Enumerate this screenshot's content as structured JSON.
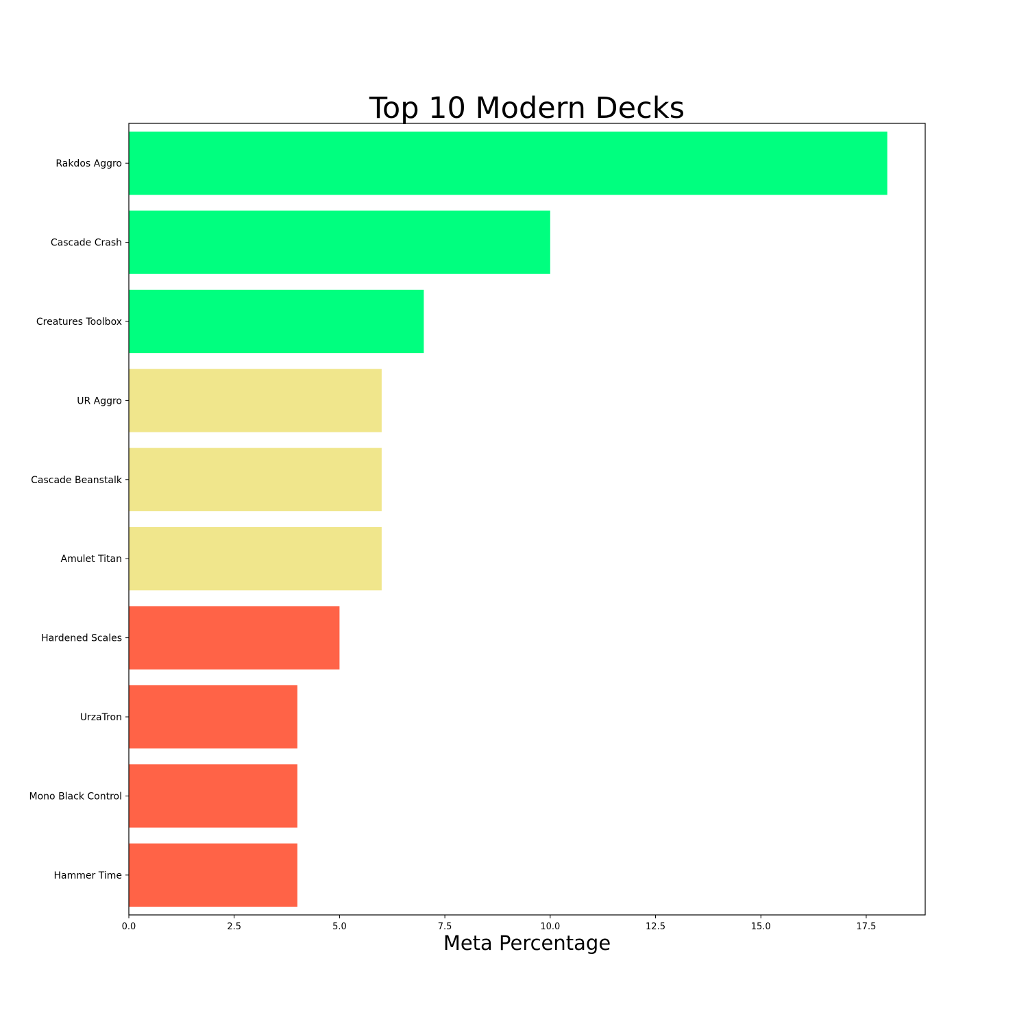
{
  "chart_data": {
    "type": "bar",
    "orientation": "horizontal",
    "title": "Top 10 Modern Decks",
    "xlabel": "Meta Percentage",
    "ylabel": "",
    "categories": [
      "Rakdos Aggro",
      "Cascade Crash",
      "Creatures Toolbox",
      "UR Aggro",
      "Cascade Beanstalk",
      "Amulet Titan",
      "Hardened Scales",
      "UrzaTron",
      "Mono Black Control",
      "Hammer Time"
    ],
    "values": [
      18,
      10,
      7,
      6,
      6,
      6,
      5,
      4,
      4,
      4
    ],
    "colors": [
      "#00ff7f",
      "#00ff7f",
      "#00ff7f",
      "#f0e68c",
      "#f0e68c",
      "#f0e68c",
      "#ff6347",
      "#ff6347",
      "#ff6347",
      "#ff6347"
    ],
    "xlim": [
      0,
      18.9
    ],
    "xticks": [
      0,
      2.5,
      5,
      7.5,
      10,
      12.5,
      15,
      17.5
    ],
    "xtick_labels": [
      "0.0",
      "2.5",
      "5.0",
      "7.5",
      "10.0",
      "12.5",
      "15.0",
      "17.5"
    ],
    "grid": false,
    "legend": "none"
  }
}
